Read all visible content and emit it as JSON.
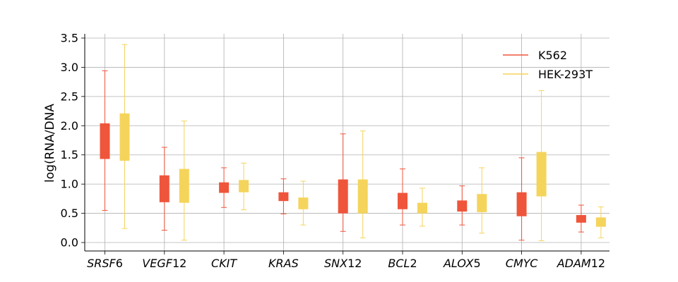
{
  "chart_data": {
    "type": "box",
    "ylabel": "log(RNA/DNA",
    "ylim": [
      -0.12,
      3.56
    ],
    "yticks": [
      "0.0",
      "0.5",
      "1.0",
      "1.5",
      "2.0",
      "2.5",
      "3.0",
      "3.5"
    ],
    "grid": true,
    "legend_position": "top-right",
    "categories": [
      "SRSF6",
      "VEGF12",
      "CKIT",
      "KRAS",
      "SNX12",
      "BCL2",
      "ALOX5",
      "CMYC",
      "ADAM12"
    ],
    "category_labels": [
      {
        "italic": "SRSF",
        "plain": "6"
      },
      {
        "italic": "VEGF",
        "plain": "12"
      },
      {
        "italic": "CKIT",
        "plain": ""
      },
      {
        "italic": "KRAS",
        "plain": ""
      },
      {
        "italic": "SNX",
        "plain": "12"
      },
      {
        "italic": "BCL",
        "plain": "2"
      },
      {
        "italic": "ALOX",
        "plain": "5"
      },
      {
        "italic": "CMYC",
        "plain": ""
      },
      {
        "italic": "ADAM",
        "plain": "12"
      }
    ],
    "series": [
      {
        "name": "K562",
        "color": "#ef553b",
        "boxes": [
          {
            "min": 0.55,
            "q1": 1.43,
            "q3": 2.04,
            "max": 2.94
          },
          {
            "min": 0.21,
            "q1": 0.69,
            "q3": 1.15,
            "max": 1.63
          },
          {
            "min": 0.6,
            "q1": 0.85,
            "q3": 1.03,
            "max": 1.28
          },
          {
            "min": 0.49,
            "q1": 0.71,
            "q3": 0.86,
            "max": 1.09
          },
          {
            "min": 0.19,
            "q1": 0.5,
            "q3": 1.08,
            "max": 1.86
          },
          {
            "min": 0.3,
            "q1": 0.57,
            "q3": 0.85,
            "max": 1.26
          },
          {
            "min": 0.3,
            "q1": 0.53,
            "q3": 0.72,
            "max": 0.97
          },
          {
            "min": 0.04,
            "q1": 0.45,
            "q3": 0.86,
            "max": 1.45
          },
          {
            "min": 0.18,
            "q1": 0.34,
            "q3": 0.47,
            "max": 0.64
          }
        ]
      },
      {
        "name": "HEK-293T",
        "color": "#f5d45c",
        "boxes": [
          {
            "min": 0.24,
            "q1": 1.4,
            "q3": 2.21,
            "max": 3.39
          },
          {
            "min": 0.04,
            "q1": 0.68,
            "q3": 1.26,
            "max": 2.08
          },
          {
            "min": 0.56,
            "q1": 0.86,
            "q3": 1.07,
            "max": 1.36
          },
          {
            "min": 0.3,
            "q1": 0.57,
            "q3": 0.77,
            "max": 1.05
          },
          {
            "min": 0.08,
            "q1": 0.5,
            "q3": 1.08,
            "max": 1.91
          },
          {
            "min": 0.28,
            "q1": 0.5,
            "q3": 0.68,
            "max": 0.93
          },
          {
            "min": 0.16,
            "q1": 0.52,
            "q3": 0.83,
            "max": 1.28
          },
          {
            "min": 0.03,
            "q1": 0.79,
            "q3": 1.55,
            "max": 2.6
          },
          {
            "min": 0.08,
            "q1": 0.27,
            "q3": 0.43,
            "max": 0.61
          }
        ]
      }
    ]
  }
}
